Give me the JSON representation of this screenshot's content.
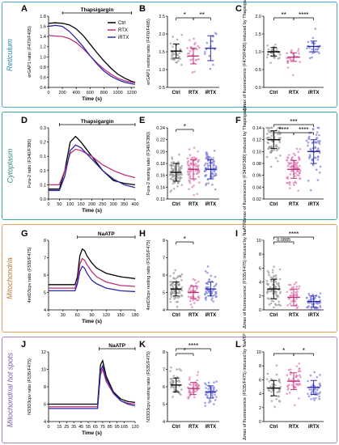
{
  "rows": [
    {
      "label": "Reticulum",
      "border_color": "#4aa6d8",
      "text_color": "#2a86b8"
    },
    {
      "label": "Cytoplasm",
      "border_color": "#3aa89a",
      "text_color": "#2a8878"
    },
    {
      "label": "Mitochondria",
      "border_color": "#e0a060",
      "text_color": "#c07830"
    },
    {
      "label": "Mitochondrial hot spots",
      "border_color": "#a888c8",
      "text_color": "#7858a0"
    }
  ],
  "colors": {
    "Ctrl": "#000000",
    "RTX": "#c0307a",
    "iRTX": "#2a2aa8",
    "ctrl_dot": "#999999",
    "rtx_dot": "#e07ab0",
    "irtx_dot": "#7a7ad8"
  },
  "chart_data": [
    {
      "id": "A",
      "type": "line",
      "title": "",
      "ylabel": "erGAP1 ratio (F470/F405)",
      "xlabel": "Time (s)",
      "xlim": [
        0,
        1250
      ],
      "ylim": [
        0.4,
        1.8
      ],
      "xticks": [
        0,
        200,
        400,
        600,
        800,
        1000,
        1200
      ],
      "yticks": [
        0.4,
        0.6,
        0.8,
        1.0,
        1.2,
        1.4,
        1.6,
        1.8
      ],
      "annotation": "Thapsigargin",
      "annot_range": [
        200,
        1200
      ],
      "series": [
        {
          "name": "Ctrl",
          "x": [
            0,
            100,
            200,
            300,
            400,
            500,
            600,
            700,
            800,
            900,
            1000,
            1100,
            1200,
            1250
          ],
          "y": [
            1.66,
            1.67,
            1.66,
            1.63,
            1.55,
            1.42,
            1.25,
            1.08,
            0.92,
            0.78,
            0.66,
            0.58,
            0.52,
            0.5
          ]
        },
        {
          "name": "RTX",
          "x": [
            0,
            100,
            200,
            300,
            400,
            500,
            600,
            700,
            800,
            900,
            1000,
            1100,
            1200,
            1250
          ],
          "y": [
            1.42,
            1.41,
            1.4,
            1.36,
            1.28,
            1.16,
            1.02,
            0.88,
            0.76,
            0.66,
            0.58,
            0.53,
            0.5,
            0.49
          ]
        },
        {
          "name": "iRTX",
          "x": [
            0,
            100,
            200,
            300,
            400,
            500,
            600,
            700,
            800,
            900,
            1000,
            1100,
            1200,
            1250
          ],
          "y": [
            1.6,
            1.62,
            1.6,
            1.5,
            1.36,
            1.2,
            1.02,
            0.86,
            0.72,
            0.62,
            0.55,
            0.5,
            0.47,
            0.46
          ]
        }
      ],
      "legend": [
        "Ctrl",
        "RTX",
        "iRTX"
      ]
    },
    {
      "id": "B",
      "type": "scatter",
      "ylabel": "erGAP1 resting ratio (F470/F405)",
      "categories": [
        "Ctrl",
        "RTX",
        "iRTX"
      ],
      "ylim": [
        0.5,
        2.5
      ],
      "yticks": [
        0.5,
        1.0,
        1.5,
        2.0,
        2.5
      ],
      "means": [
        1.52,
        1.38,
        1.6
      ],
      "sd": [
        0.2,
        0.22,
        0.35
      ],
      "n": [
        30,
        25,
        15
      ],
      "sig": [
        {
          "a": 0,
          "b": 1,
          "label": "*"
        },
        {
          "a": 1,
          "b": 2,
          "label": "**"
        }
      ]
    },
    {
      "id": "C",
      "type": "scatter",
      "ylabel": "Δmax of fluorescence (F470/F405) induced by Thapsigargin",
      "categories": [
        "Ctrl",
        "RTX",
        "iRTX"
      ],
      "ylim": [
        0.0,
        2.0
      ],
      "yticks": [
        0.0,
        0.5,
        1.0,
        1.5,
        2.0
      ],
      "means": [
        1.0,
        0.85,
        1.15
      ],
      "sd": [
        0.12,
        0.12,
        0.15
      ],
      "n": [
        30,
        25,
        25
      ],
      "sig": [
        {
          "a": 0,
          "b": 1,
          "label": "**"
        },
        {
          "a": 1,
          "b": 2,
          "label": "****"
        }
      ]
    },
    {
      "id": "D",
      "type": "line",
      "ylabel": "Fura-2 ratio (F340/F380)",
      "xlabel": "Time (s)",
      "xlim": [
        0,
        400
      ],
      "ylim": [
        0.0,
        0.25
      ],
      "xticks": [
        0,
        50,
        100,
        150,
        200,
        250,
        300,
        350,
        400
      ],
      "yticks": [
        0.0,
        0.05,
        0.1,
        0.15,
        0.2,
        0.25
      ],
      "annotation": "Thapsigargin",
      "annot_range": [
        50,
        400
      ],
      "series": [
        {
          "name": "Ctrl",
          "x": [
            0,
            50,
            75,
            100,
            125,
            150,
            200,
            250,
            300,
            350,
            400
          ],
          "y": [
            0.035,
            0.035,
            0.1,
            0.2,
            0.22,
            0.2,
            0.15,
            0.1,
            0.065,
            0.055,
            0.05
          ]
        },
        {
          "name": "RTX",
          "x": [
            0,
            50,
            75,
            100,
            125,
            150,
            200,
            250,
            300,
            350,
            400
          ],
          "y": [
            0.05,
            0.05,
            0.1,
            0.16,
            0.175,
            0.17,
            0.15,
            0.12,
            0.1,
            0.085,
            0.075
          ]
        },
        {
          "name": "iRTX",
          "x": [
            0,
            50,
            75,
            100,
            125,
            150,
            200,
            250,
            300,
            350,
            400
          ],
          "y": [
            0.03,
            0.03,
            0.08,
            0.17,
            0.19,
            0.18,
            0.14,
            0.1,
            0.07,
            0.05,
            0.04
          ]
        }
      ]
    },
    {
      "id": "E",
      "type": "scatter",
      "ylabel": "Fura-2 resting ratio (F340/F380)",
      "categories": [
        "Ctrl",
        "RTX",
        "iRTX"
      ],
      "ylim": [
        0.12,
        0.24
      ],
      "yticks": [
        0.12,
        0.14,
        0.16,
        0.18,
        0.2,
        0.22,
        0.24
      ],
      "means": [
        0.165,
        0.17,
        0.17
      ],
      "sd": [
        0.015,
        0.016,
        0.016
      ],
      "n": [
        80,
        70,
        70
      ],
      "sig": [
        {
          "a": 0,
          "b": 1,
          "label": "*"
        }
      ]
    },
    {
      "id": "F",
      "type": "scatter",
      "ylabel": "Δmax of fluorescence (F340/F380) induced by Thapsigargin",
      "categories": [
        "Ctrl",
        "RTX",
        "iRTX"
      ],
      "ylim": [
        0.02,
        0.14
      ],
      "yticks": [
        0.02,
        0.04,
        0.06,
        0.08,
        0.1,
        0.12,
        0.14
      ],
      "means": [
        0.12,
        0.07,
        0.1
      ],
      "sd": [
        0.015,
        0.015,
        0.02
      ],
      "n": [
        70,
        80,
        60
      ],
      "sig": [
        {
          "a": 0,
          "b": 1,
          "label": "****"
        },
        {
          "a": 1,
          "b": 2,
          "label": "****"
        },
        {
          "a": 0,
          "b": 2,
          "label": "***"
        }
      ]
    },
    {
      "id": "G",
      "type": "line",
      "ylabel": "4mtD3cpv ratio (F535/F475)",
      "xlabel": "Time (s)",
      "xlim": [
        0,
        180
      ],
      "ylim": [
        4,
        8
      ],
      "xticks": [
        0,
        30,
        60,
        90,
        120,
        150,
        180
      ],
      "yticks": [
        4,
        5,
        6,
        7,
        8
      ],
      "annotation": "NaATP",
      "annot_range": [
        60,
        180
      ],
      "series": [
        {
          "name": "Ctrl",
          "x": [
            0,
            30,
            55,
            60,
            65,
            70,
            75,
            80,
            90,
            100,
            120,
            150,
            180
          ],
          "y": [
            5.45,
            5.45,
            5.45,
            5.9,
            7.1,
            7.5,
            7.4,
            7.1,
            6.7,
            6.4,
            6.1,
            5.9,
            5.8
          ]
        },
        {
          "name": "RTX",
          "x": [
            0,
            30,
            55,
            60,
            65,
            70,
            75,
            80,
            90,
            100,
            120,
            150,
            180
          ],
          "y": [
            5.25,
            5.25,
            5.25,
            5.6,
            6.6,
            6.95,
            6.85,
            6.6,
            6.2,
            5.9,
            5.6,
            5.4,
            5.35
          ]
        },
        {
          "name": "iRTX",
          "x": [
            0,
            30,
            55,
            60,
            65,
            70,
            75,
            80,
            90,
            100,
            120,
            150,
            180
          ],
          "y": [
            5.1,
            5.1,
            5.1,
            5.5,
            6.2,
            6.5,
            6.4,
            6.1,
            5.7,
            5.5,
            5.25,
            5.1,
            5.05
          ]
        }
      ]
    },
    {
      "id": "H",
      "type": "scatter",
      "ylabel": "4mtD3cpv resting ratio (F535/F475)",
      "categories": [
        "Ctrl",
        "RTX",
        "iRTX"
      ],
      "ylim": [
        4,
        8
      ],
      "yticks": [
        4,
        5,
        6,
        7,
        8
      ],
      "means": [
        5.2,
        5.0,
        5.2
      ],
      "sd": [
        0.4,
        0.35,
        0.4
      ],
      "n": [
        80,
        40,
        50
      ],
      "sig": [
        {
          "a": 0,
          "b": 1,
          "label": "*"
        }
      ]
    },
    {
      "id": "I",
      "type": "scatter",
      "ylabel": "Δmax of fluorescence (F535/F475) induced by NaATP",
      "categories": [
        "Ctrl",
        "RTX",
        "iRTX"
      ],
      "ylim": [
        0,
        10
      ],
      "yticks": [
        0,
        2,
        4,
        6,
        8,
        10
      ],
      "means": [
        3.0,
        1.8,
        1.2
      ],
      "sd": [
        1.4,
        1.2,
        0.8
      ],
      "n": [
        80,
        40,
        50
      ],
      "sig": [
        {
          "a": 0,
          "b": 1,
          "label": "0.0885"
        },
        {
          "a": 0,
          "b": 2,
          "label": "****"
        }
      ]
    },
    {
      "id": "J",
      "type": "line",
      "ylabel": "N33D3cpv ratio (F535/F475)",
      "xlabel": "Time (s)",
      "xlim": [
        0,
        120
      ],
      "ylim": [
        4,
        12
      ],
      "xticks": [
        0,
        15,
        25,
        35,
        45,
        55,
        65,
        75,
        85,
        95,
        105,
        120
      ],
      "xticklabels": [
        "0",
        "15",
        "25",
        "35",
        "45",
        "55",
        "65",
        "75",
        "85",
        "95",
        "105",
        "120"
      ],
      "yticks": [
        4,
        6,
        8,
        10,
        12
      ],
      "annotation": "NaATP",
      "annot_range": [
        70,
        120
      ],
      "series": [
        {
          "name": "Ctrl",
          "x": [
            0,
            25,
            50,
            68,
            72,
            75,
            80,
            90,
            100,
            110,
            120
          ],
          "y": [
            6.0,
            6.0,
            6.0,
            6.0,
            10.5,
            11.0,
            9.2,
            7.4,
            6.6,
            6.3,
            6.2
          ]
        },
        {
          "name": "RTX",
          "x": [
            0,
            25,
            50,
            68,
            72,
            75,
            80,
            90,
            100,
            110,
            120
          ],
          "y": [
            5.7,
            5.7,
            5.7,
            5.7,
            9.4,
            10.0,
            8.6,
            7.2,
            6.4,
            6.1,
            6.0
          ]
        },
        {
          "name": "iRTX",
          "x": [
            0,
            25,
            50,
            68,
            72,
            75,
            80,
            90,
            100,
            110,
            120
          ],
          "y": [
            5.5,
            5.5,
            5.5,
            5.5,
            9.8,
            10.4,
            8.9,
            7.3,
            6.4,
            6.0,
            5.8
          ]
        }
      ]
    },
    {
      "id": "K",
      "type": "scatter",
      "ylabel": "N33D3cpv resting ratio (F535/F475)",
      "categories": [
        "Ctrl",
        "RTX",
        "iRTX"
      ],
      "ylim": [
        4,
        8
      ],
      "yticks": [
        4,
        5,
        6,
        7,
        8
      ],
      "means": [
        6.1,
        5.9,
        5.7
      ],
      "sd": [
        0.4,
        0.35,
        0.35
      ],
      "n": [
        40,
        45,
        40
      ],
      "sig": [
        {
          "a": 0,
          "b": 1,
          "label": "*"
        },
        {
          "a": 0,
          "b": 2,
          "label": "****"
        }
      ]
    },
    {
      "id": "L",
      "type": "scatter",
      "ylabel": "Δmax of fluorescence (F535/F475) induced by NaATP",
      "categories": [
        "Ctrl",
        "RTX",
        "iRTX"
      ],
      "ylim": [
        0,
        10
      ],
      "yticks": [
        0,
        2,
        4,
        6,
        8,
        10
      ],
      "means": [
        4.8,
        5.8,
        4.9
      ],
      "sd": [
        1.1,
        1.2,
        1.0
      ],
      "n": [
        40,
        45,
        40
      ],
      "sig": [
        {
          "a": 0,
          "b": 1,
          "label": "*"
        },
        {
          "a": 1,
          "b": 2,
          "label": "*"
        }
      ]
    }
  ]
}
